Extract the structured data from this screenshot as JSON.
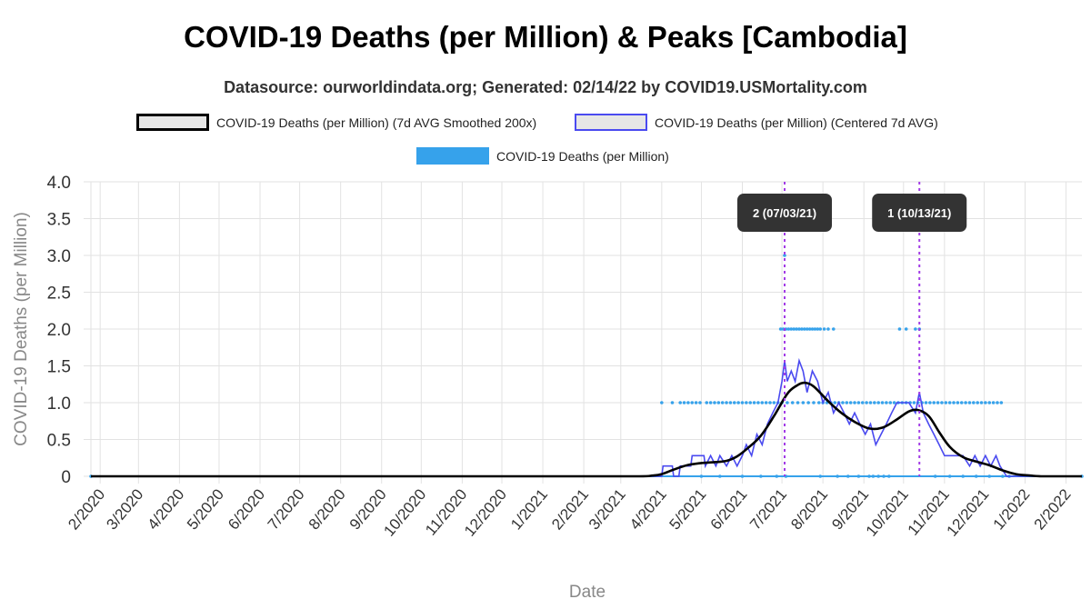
{
  "title": "COVID-19 Deaths (per Million) & Peaks [Cambodia]",
  "subtitle": "Datasource: ourworldindata.org; Generated: 02/14/22 by COVID19.USMortality.com",
  "legend": [
    {
      "label": "COVID-19 Deaths (per Million) (7d AVG Smoothed 200x)",
      "color": "#000000",
      "fill": "#e6e6e6"
    },
    {
      "label": "COVID-19 Deaths (per Million) (Centered 7d AVG)",
      "color": "#4a4af0",
      "fill": "#e6e6e6"
    },
    {
      "label": "COVID-19 Deaths (per Million)",
      "color": "#36a2eb",
      "fill": "#36a2eb"
    }
  ],
  "chart_data": {
    "type": "line",
    "xlabel": "Date",
    "ylabel": "COVID-19 Deaths (per Million)",
    "ylim": [
      0,
      4
    ],
    "y_ticks": [
      "0",
      "0.5",
      "1.0",
      "1.5",
      "2.0",
      "2.5",
      "3.0",
      "3.5",
      "4.0"
    ],
    "x_ticks": [
      "2/2020",
      "3/2020",
      "4/2020",
      "5/2020",
      "6/2020",
      "7/2020",
      "8/2020",
      "9/2020",
      "10/2020",
      "11/2020",
      "12/2020",
      "1/2021",
      "2/2021",
      "3/2021",
      "4/2021",
      "5/2021",
      "6/2021",
      "7/2021",
      "8/2021",
      "9/2021",
      "10/2021",
      "11/2021",
      "12/2021",
      "1/2022",
      "2/2022"
    ],
    "x_range": [
      "2020-01-25",
      "2022-02-13"
    ],
    "grid": true,
    "legend_position": "top",
    "peaks": [
      {
        "date": "2021-07-03",
        "label": "2 (07/03/21)"
      },
      {
        "date": "2021-10-13",
        "label": "1 (10/13/21)"
      }
    ],
    "series": [
      {
        "name": "COVID-19 Deaths (per Million) (7d AVG Smoothed 200x)",
        "color": "#000000",
        "points": [
          [
            "2020-01-25",
            0
          ],
          [
            "2021-02-01",
            0
          ],
          [
            "2021-03-15",
            0
          ],
          [
            "2021-03-25",
            0.01
          ],
          [
            "2021-04-01",
            0.03
          ],
          [
            "2021-04-10",
            0.09
          ],
          [
            "2021-04-20",
            0.15
          ],
          [
            "2021-05-01",
            0.18
          ],
          [
            "2021-05-10",
            0.19
          ],
          [
            "2021-05-20",
            0.21
          ],
          [
            "2021-05-28",
            0.27
          ],
          [
            "2021-06-05",
            0.38
          ],
          [
            "2021-06-15",
            0.55
          ],
          [
            "2021-06-25",
            0.82
          ],
          [
            "2021-07-05",
            1.12
          ],
          [
            "2021-07-12",
            1.23
          ],
          [
            "2021-07-18",
            1.27
          ],
          [
            "2021-07-25",
            1.22
          ],
          [
            "2021-08-05",
            1.02
          ],
          [
            "2021-08-15",
            0.86
          ],
          [
            "2021-08-25",
            0.74
          ],
          [
            "2021-09-05",
            0.65
          ],
          [
            "2021-09-15",
            0.66
          ],
          [
            "2021-09-25",
            0.76
          ],
          [
            "2021-10-05",
            0.88
          ],
          [
            "2021-10-12",
            0.9
          ],
          [
            "2021-10-20",
            0.82
          ],
          [
            "2021-10-28",
            0.6
          ],
          [
            "2021-11-05",
            0.4
          ],
          [
            "2021-11-15",
            0.26
          ],
          [
            "2021-11-25",
            0.2
          ],
          [
            "2021-12-05",
            0.15
          ],
          [
            "2021-12-15",
            0.08
          ],
          [
            "2021-12-25",
            0.03
          ],
          [
            "2022-01-05",
            0.01
          ],
          [
            "2022-01-15",
            0
          ],
          [
            "2022-02-13",
            0
          ]
        ]
      },
      {
        "name": "COVID-19 Deaths (per Million) (Centered 7d AVG)",
        "color": "#4a4af0",
        "points": [
          [
            "2020-01-25",
            0
          ],
          [
            "2021-03-28",
            0
          ],
          [
            "2021-04-01",
            0
          ],
          [
            "2021-04-02",
            0.14
          ],
          [
            "2021-04-09",
            0.14
          ],
          [
            "2021-04-10",
            0
          ],
          [
            "2021-04-14",
            0
          ],
          [
            "2021-04-15",
            0.14
          ],
          [
            "2021-04-23",
            0.14
          ],
          [
            "2021-04-24",
            0.28
          ],
          [
            "2021-05-03",
            0.28
          ],
          [
            "2021-05-04",
            0.14
          ],
          [
            "2021-05-08",
            0.28
          ],
          [
            "2021-05-12",
            0.14
          ],
          [
            "2021-05-15",
            0.28
          ],
          [
            "2021-05-20",
            0.14
          ],
          [
            "2021-05-24",
            0.28
          ],
          [
            "2021-05-28",
            0.14
          ],
          [
            "2021-06-01",
            0.28
          ],
          [
            "2021-06-04",
            0.43
          ],
          [
            "2021-06-08",
            0.28
          ],
          [
            "2021-06-12",
            0.57
          ],
          [
            "2021-06-16",
            0.43
          ],
          [
            "2021-06-20",
            0.71
          ],
          [
            "2021-06-24",
            0.86
          ],
          [
            "2021-06-28",
            1.0
          ],
          [
            "2021-07-01",
            1.29
          ],
          [
            "2021-07-03",
            1.57
          ],
          [
            "2021-07-05",
            1.29
          ],
          [
            "2021-07-08",
            1.43
          ],
          [
            "2021-07-11",
            1.29
          ],
          [
            "2021-07-14",
            1.57
          ],
          [
            "2021-07-17",
            1.43
          ],
          [
            "2021-07-20",
            1.14
          ],
          [
            "2021-07-24",
            1.43
          ],
          [
            "2021-07-28",
            1.29
          ],
          [
            "2021-08-01",
            1.0
          ],
          [
            "2021-08-05",
            1.14
          ],
          [
            "2021-08-09",
            0.86
          ],
          [
            "2021-08-13",
            1.0
          ],
          [
            "2021-08-17",
            0.86
          ],
          [
            "2021-08-21",
            0.71
          ],
          [
            "2021-08-25",
            0.86
          ],
          [
            "2021-08-29",
            0.71
          ],
          [
            "2021-09-02",
            0.57
          ],
          [
            "2021-09-06",
            0.71
          ],
          [
            "2021-09-10",
            0.43
          ],
          [
            "2021-09-14",
            0.57
          ],
          [
            "2021-09-18",
            0.71
          ],
          [
            "2021-09-22",
            0.86
          ],
          [
            "2021-09-26",
            1.0
          ],
          [
            "2021-10-05",
            1.0
          ],
          [
            "2021-10-10",
            0.86
          ],
          [
            "2021-10-13",
            1.14
          ],
          [
            "2021-10-16",
            0.86
          ],
          [
            "2021-10-20",
            0.71
          ],
          [
            "2021-10-24",
            0.57
          ],
          [
            "2021-10-28",
            0.43
          ],
          [
            "2021-11-01",
            0.28
          ],
          [
            "2021-11-15",
            0.28
          ],
          [
            "2021-11-20",
            0.14
          ],
          [
            "2021-11-24",
            0.28
          ],
          [
            "2021-11-28",
            0.14
          ],
          [
            "2021-12-02",
            0.28
          ],
          [
            "2021-12-06",
            0.14
          ],
          [
            "2021-12-10",
            0.28
          ],
          [
            "2021-12-13",
            0.14
          ],
          [
            "2021-12-18",
            0
          ],
          [
            "2022-02-13",
            0
          ]
        ]
      },
      {
        "name": "COVID-19 Deaths (per Million)",
        "color": "#36a2eb",
        "points": [
          [
            "2020-01-25",
            0
          ],
          [
            "2021-04-01",
            1
          ],
          [
            "2021-04-09",
            1
          ],
          [
            "2021-04-15",
            1
          ],
          [
            "2021-04-18",
            1
          ],
          [
            "2021-04-21",
            1
          ],
          [
            "2021-04-24",
            1
          ],
          [
            "2021-04-27",
            1
          ],
          [
            "2021-04-30",
            1
          ],
          [
            "2021-05-05",
            1
          ],
          [
            "2021-05-08",
            1
          ],
          [
            "2021-05-11",
            1
          ],
          [
            "2021-05-14",
            1
          ],
          [
            "2021-05-17",
            1
          ],
          [
            "2021-05-20",
            1
          ],
          [
            "2021-05-23",
            1
          ],
          [
            "2021-05-26",
            1
          ],
          [
            "2021-05-29",
            1
          ],
          [
            "2021-06-01",
            1
          ],
          [
            "2021-06-04",
            1
          ],
          [
            "2021-06-07",
            1
          ],
          [
            "2021-06-10",
            1
          ],
          [
            "2021-06-13",
            1
          ],
          [
            "2021-06-16",
            1
          ],
          [
            "2021-06-19",
            1
          ],
          [
            "2021-06-22",
            1
          ],
          [
            "2021-06-25",
            1
          ],
          [
            "2021-06-28",
            1
          ],
          [
            "2021-06-30",
            2
          ],
          [
            "2021-07-02",
            2
          ],
          [
            "2021-07-03",
            3
          ],
          [
            "2021-07-04",
            2
          ],
          [
            "2021-07-06",
            2
          ],
          [
            "2021-07-08",
            2
          ],
          [
            "2021-07-10",
            2
          ],
          [
            "2021-07-12",
            2
          ],
          [
            "2021-07-14",
            2
          ],
          [
            "2021-07-16",
            2
          ],
          [
            "2021-07-18",
            2
          ],
          [
            "2021-07-20",
            2
          ],
          [
            "2021-07-22",
            2
          ],
          [
            "2021-07-24",
            2
          ],
          [
            "2021-07-26",
            2
          ],
          [
            "2021-07-28",
            2
          ],
          [
            "2021-07-30",
            2
          ],
          [
            "2021-08-02",
            2
          ],
          [
            "2021-08-05",
            2
          ],
          [
            "2021-08-09",
            2
          ],
          [
            "2021-07-01",
            1
          ],
          [
            "2021-07-05",
            1
          ],
          [
            "2021-07-09",
            1
          ],
          [
            "2021-07-13",
            1
          ],
          [
            "2021-07-17",
            1
          ],
          [
            "2021-07-21",
            1
          ],
          [
            "2021-07-25",
            1
          ],
          [
            "2021-07-29",
            1
          ],
          [
            "2021-08-01",
            1
          ],
          [
            "2021-08-04",
            1
          ],
          [
            "2021-08-07",
            1
          ],
          [
            "2021-08-10",
            1
          ],
          [
            "2021-08-13",
            1
          ],
          [
            "2021-08-16",
            1
          ],
          [
            "2021-08-19",
            1
          ],
          [
            "2021-08-22",
            1
          ],
          [
            "2021-08-25",
            1
          ],
          [
            "2021-08-28",
            1
          ],
          [
            "2021-08-31",
            1
          ],
          [
            "2021-09-03",
            1
          ],
          [
            "2021-09-06",
            1
          ],
          [
            "2021-09-09",
            1
          ],
          [
            "2021-09-12",
            1
          ],
          [
            "2021-09-15",
            1
          ],
          [
            "2021-09-18",
            1
          ],
          [
            "2021-09-21",
            1
          ],
          [
            "2021-09-24",
            1
          ],
          [
            "2021-09-27",
            1
          ],
          [
            "2021-09-30",
            1
          ],
          [
            "2021-10-03",
            1
          ],
          [
            "2021-09-28",
            2
          ],
          [
            "2021-10-03",
            2
          ],
          [
            "2021-10-10",
            2
          ],
          [
            "2021-10-13",
            2
          ],
          [
            "2021-10-06",
            1
          ],
          [
            "2021-10-09",
            1
          ],
          [
            "2021-10-12",
            1
          ],
          [
            "2021-10-15",
            1
          ],
          [
            "2021-10-18",
            1
          ],
          [
            "2021-10-21",
            1
          ],
          [
            "2021-10-24",
            1
          ],
          [
            "2021-10-27",
            1
          ],
          [
            "2021-10-30",
            1
          ],
          [
            "2021-11-02",
            1
          ],
          [
            "2021-11-05",
            1
          ],
          [
            "2021-11-08",
            1
          ],
          [
            "2021-11-11",
            1
          ],
          [
            "2021-11-14",
            1
          ],
          [
            "2021-11-17",
            1
          ],
          [
            "2021-11-20",
            1
          ],
          [
            "2021-11-23",
            1
          ],
          [
            "2021-11-26",
            1
          ],
          [
            "2021-11-29",
            1
          ],
          [
            "2021-12-02",
            1
          ],
          [
            "2021-12-05",
            1
          ],
          [
            "2021-12-08",
            1
          ],
          [
            "2021-12-11",
            1
          ],
          [
            "2021-12-14",
            1
          ],
          [
            "2021-05-01",
            0
          ],
          [
            "2021-05-15",
            0
          ],
          [
            "2021-06-01",
            0
          ],
          [
            "2021-06-15",
            0
          ],
          [
            "2021-06-27",
            0
          ],
          [
            "2021-07-04",
            0
          ],
          [
            "2021-07-30",
            0
          ],
          [
            "2021-08-12",
            0
          ],
          [
            "2021-08-20",
            0
          ],
          [
            "2021-08-28",
            0
          ],
          [
            "2021-09-05",
            0
          ],
          [
            "2021-09-08",
            0
          ],
          [
            "2021-09-12",
            0
          ],
          [
            "2021-09-16",
            0
          ],
          [
            "2021-09-20",
            0
          ],
          [
            "2021-10-25",
            0
          ],
          [
            "2021-11-05",
            0
          ],
          [
            "2021-11-15",
            0
          ],
          [
            "2021-11-25",
            0
          ],
          [
            "2021-12-05",
            0
          ],
          [
            "2021-12-15",
            0
          ],
          [
            "2021-12-20",
            0
          ],
          [
            "2022-02-13",
            0
          ]
        ]
      }
    ]
  }
}
